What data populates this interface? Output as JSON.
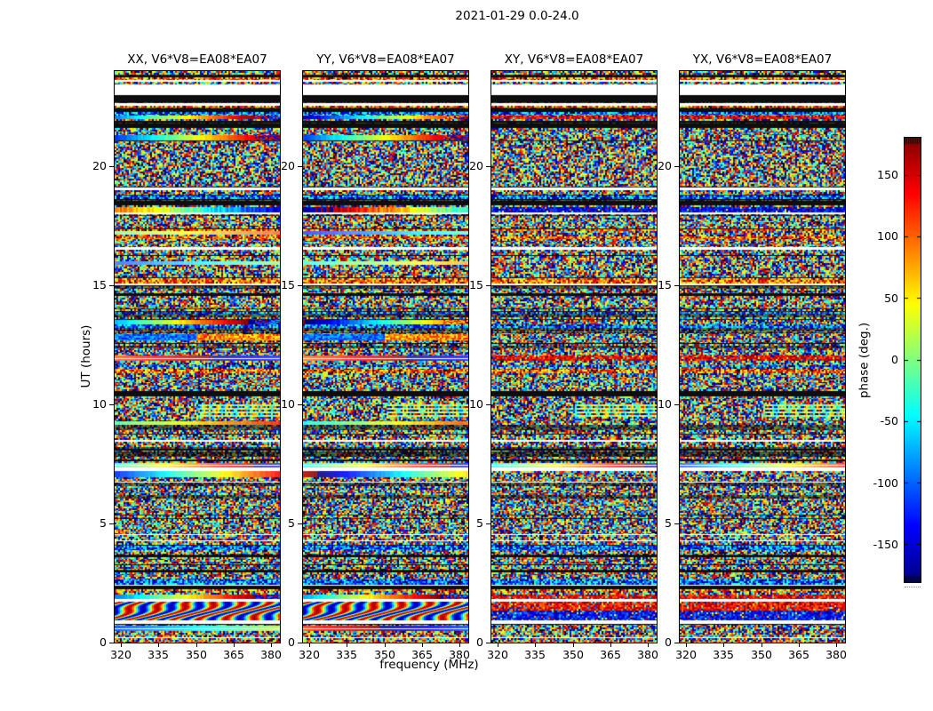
{
  "chart_data": {
    "type": "heatmap",
    "title": "2021-01-29 0.0-24.0",
    "xlabel": "frequency (MHz)",
    "ylabel": "UT (hours)",
    "x_ticks": [
      320,
      335,
      350,
      365,
      380
    ],
    "y_ticks": [
      0,
      5,
      10,
      15,
      20
    ],
    "x_range_mhz": [
      317.5,
      383.5
    ],
    "y_range_hours": [
      0,
      24
    ],
    "panels": [
      {
        "title": "XX, V6*V8=EA08*EA07",
        "polarization": "XX"
      },
      {
        "title": "YY, V6*V8=EA08*EA07",
        "polarization": "YY"
      },
      {
        "title": "XY, V6*V8=EA08*EA07",
        "polarization": "XY"
      },
      {
        "title": "YX, V6*V8=EA08*EA07",
        "polarization": "YX"
      }
    ],
    "colorbar": {
      "label": "phase (deg.)",
      "ticks": [
        150,
        100,
        50,
        0,
        -50,
        -100,
        -150
      ],
      "range_deg": [
        -180,
        180
      ],
      "colormap": "jet"
    },
    "band_seed": 20210129,
    "noise_seed": 42,
    "features": [
      {
        "h0": 23.55,
        "h1": 23.62,
        "type": "white"
      },
      {
        "h0": 23.45,
        "h1": 23.55,
        "type": "noise"
      },
      {
        "h0": 22.99,
        "h1": 23.45,
        "type": "white"
      },
      {
        "h0": 22.68,
        "h1": 22.99,
        "type": "black"
      },
      {
        "h0": 22.55,
        "h1": 22.65,
        "type": "white"
      },
      {
        "h0": 22.3,
        "h1": 22.45,
        "type": "black"
      },
      {
        "h0": 22.0,
        "h1": 22.15,
        "type": "ramp",
        "cross": "noise-red"
      },
      {
        "h0": 21.6,
        "h1": 21.8,
        "type": "black"
      },
      {
        "h0": 21.1,
        "h1": 21.3,
        "type": "ramp",
        "cross": "noise"
      },
      {
        "h0": 19.15,
        "h1": 21.05,
        "type": "noise"
      },
      {
        "h0": 18.98,
        "h1": 19.12,
        "type": "white"
      },
      {
        "h0": 18.35,
        "h1": 18.55,
        "type": "black"
      },
      {
        "h0": 18.08,
        "h1": 18.3,
        "type": "ramp2",
        "cross": "noise-blue"
      },
      {
        "h0": 17.15,
        "h1": 17.3,
        "type": "ramp-cyan",
        "cross": "noise"
      },
      {
        "h0": 16.5,
        "h1": 16.6,
        "type": "white"
      },
      {
        "h0": 15.85,
        "h1": 16.0,
        "type": "ramp-cyan",
        "cross": "noise"
      },
      {
        "h0": 13.35,
        "h1": 13.55,
        "type": "ramp",
        "cross": "noise"
      },
      {
        "h0": 12.7,
        "h1": 12.95,
        "type": "ramp-split",
        "cross": "noise"
      },
      {
        "h0": 11.85,
        "h1": 12.05,
        "type": "ramp-warm",
        "cross": "noise-red"
      },
      {
        "h0": 10.35,
        "h1": 10.55,
        "type": "black"
      },
      {
        "h0": 9.4,
        "h1": 10.0,
        "type": "fringepatch"
      },
      {
        "h0": 9.15,
        "h1": 9.3,
        "type": "ramp-warm2",
        "cross": "noise"
      },
      {
        "h0": 7.8,
        "h1": 8.0,
        "type": "noise-dark"
      },
      {
        "h0": 7.35,
        "h1": 7.55,
        "type": "ramp-bright"
      },
      {
        "h0": 7.2,
        "h1": 7.35,
        "type": "white"
      },
      {
        "h0": 6.95,
        "h1": 7.2,
        "type": "ramp-bright2",
        "cross": "noise"
      },
      {
        "h0": 2.25,
        "h1": 2.4,
        "type": "black"
      },
      {
        "h0": 1.82,
        "h1": 2.0,
        "type": "ramp",
        "cross": "noise-red"
      },
      {
        "h0": 1.7,
        "h1": 1.82,
        "type": "white"
      },
      {
        "h0": 0.95,
        "h1": 1.7,
        "type": "moire",
        "cross": "redblue"
      },
      {
        "h0": 0.78,
        "h1": 0.92,
        "type": "white"
      },
      {
        "h0": 0.5,
        "h1": 0.7,
        "type": "ramp-cool",
        "cross": "noise"
      }
    ]
  }
}
